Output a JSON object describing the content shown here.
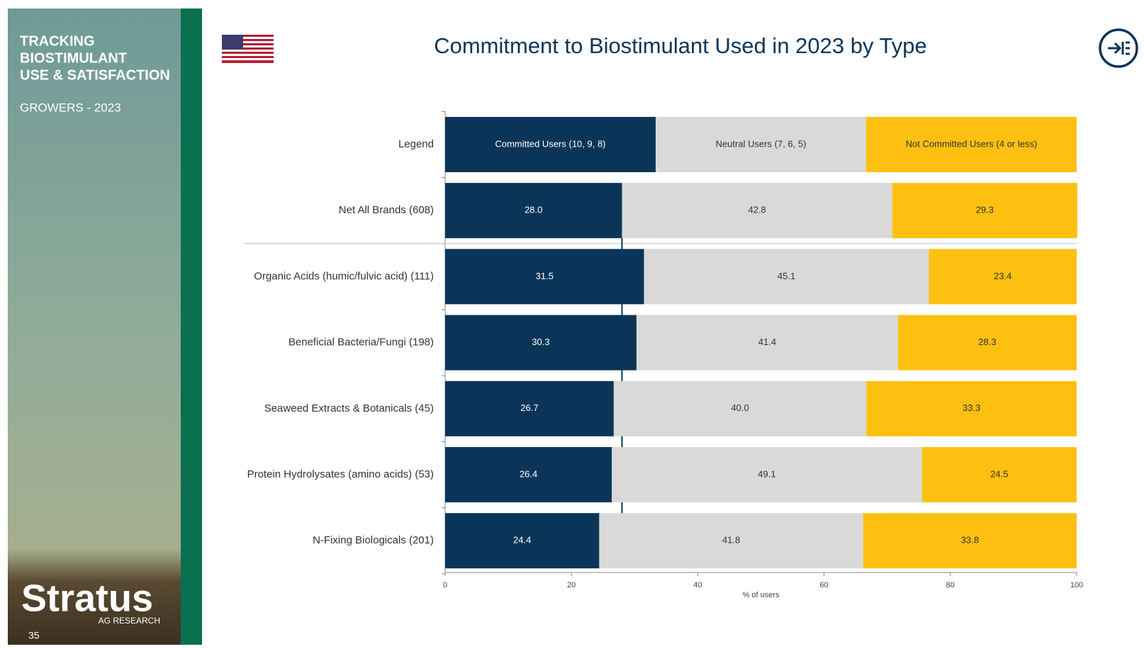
{
  "slide": {
    "panel_title": [
      "TRACKING",
      "BIOSTIMULANT",
      "USE & SATISFACTION"
    ],
    "panel_subtitle": "GROWERS - 2023",
    "logo": "Stratus",
    "logo_sub": "AG RESEARCH",
    "page_number": "35"
  },
  "chart_data": {
    "type": "stacked-barh",
    "title": "Commitment to Biostimulant Used in 2023 by Type",
    "legend_label": "Legend",
    "categories": [
      "Net All Brands (608)",
      "Organic Acids (humic/fulvic acid) (111)",
      "Beneficial Bacteria/Fungi (198)",
      "Seaweed Extracts & Botanicals (45)",
      "Protein Hydrolysates (amino acids) (53)",
      "N-Fixing Biologicals (201)"
    ],
    "series": [
      {
        "name": "Committed Users (10, 9, 8)",
        "color": "#0b3558",
        "text_color": "#ffffff",
        "values": [
          28.0,
          31.5,
          30.3,
          26.7,
          26.4,
          24.4
        ],
        "value_labels": [
          "28.0",
          "31.5",
          "30.3",
          "26.7",
          "26.4",
          "24.4"
        ]
      },
      {
        "name": "Neutral Users (7, 6, 5)",
        "color": "#d9d9d9",
        "text_color": "#333333",
        "values": [
          42.8,
          45.1,
          41.4,
          40.0,
          49.1,
          41.8
        ],
        "value_labels": [
          "42.8",
          "45.1",
          "41.4",
          "40.0",
          "49.1",
          "41.8"
        ]
      },
      {
        "name": "Not Committed Users (4 or less)",
        "color": "#fdc010",
        "text_color": "#333333",
        "values": [
          29.3,
          23.4,
          28.3,
          33.3,
          24.5,
          33.8
        ],
        "value_labels": [
          "29.3",
          "23.4",
          "28.3",
          "33.3",
          "24.5",
          "33.8"
        ]
      }
    ],
    "xlabel": "% of users",
    "xlim": [
      0,
      100
    ],
    "xticks": [
      0,
      20,
      40,
      60,
      80,
      100
    ]
  }
}
